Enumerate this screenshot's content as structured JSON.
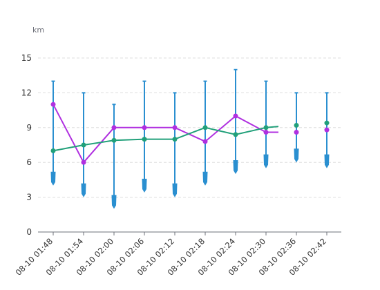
{
  "chart_data": {
    "type": "line",
    "ylabel": "km",
    "ylim": [
      0,
      15
    ],
    "yticks": [
      "0",
      "3",
      "6",
      "9",
      "12",
      "15"
    ],
    "categories": [
      "08-10 01:48",
      "08-10 01:54",
      "08-10 02:00",
      "08-10 02:06",
      "08-10 02:12",
      "08-10 02:18",
      "08-10 02:24",
      "08-10 02:30",
      "08-10 02:36",
      "08-10 02:42"
    ],
    "grid": "horizontal-dashed",
    "colors": {
      "range": "#2a8fd0",
      "purple": "#b030e0",
      "green": "#21a07a",
      "grid": "#dddddd",
      "axis": "#6e7079"
    },
    "range_series": {
      "high": [
        13,
        12,
        11,
        13,
        12,
        13,
        14,
        13,
        12,
        12
      ],
      "low": [
        4,
        3,
        2,
        3.4,
        3,
        4,
        5,
        5.5,
        6,
        5.5
      ]
    },
    "series": [
      {
        "color": "purple",
        "values": [
          11,
          6,
          9,
          9,
          9,
          7.8,
          10,
          8.6,
          8.6,
          8.8
        ],
        "tail_to": 8.6
      },
      {
        "color": "green",
        "values": [
          7,
          7.5,
          7.9,
          8,
          8,
          9,
          8.4,
          9,
          9.2,
          9.4
        ],
        "tail_to": 9.1
      }
    ]
  }
}
